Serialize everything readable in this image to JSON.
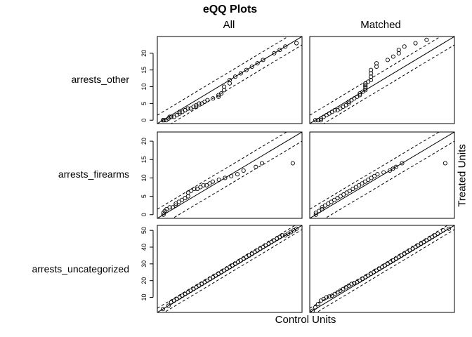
{
  "chart_data": {
    "type": "scatter",
    "title": "eQQ Plots",
    "column_labels": [
      "All",
      "Matched"
    ],
    "xlabel": "Control Units",
    "ylabel": "Treated Units",
    "panels": [
      {
        "row": "arrests_other",
        "yticks": [
          0,
          5,
          10,
          15,
          20
        ],
        "ylim": [
          -1,
          25
        ],
        "band_offset": 2.5,
        "columns": [
          {
            "name": "All",
            "x": [
              0,
              0.2,
              0.6,
              1,
              1.2,
              1.5,
              2,
              2.5,
              3,
              3,
              3.5,
              4,
              4,
              4.5,
              5,
              5.5,
              6,
              6,
              6.5,
              7,
              7.5,
              8,
              9,
              10,
              10,
              10.5,
              11,
              11,
              12,
              12,
              13,
              14,
              15,
              16,
              17,
              18,
              20,
              21,
              22,
              24
            ],
            "y": [
              0,
              0,
              0,
              0.5,
              1,
              1,
              1,
              1.5,
              2,
              2.5,
              2.5,
              3,
              3,
              3.5,
              3.5,
              4,
              4,
              4.5,
              5,
              5,
              5.5,
              6,
              6.5,
              7,
              7.5,
              8,
              9,
              10,
              11,
              12,
              13,
              14,
              15,
              16,
              17,
              18,
              20,
              21,
              22,
              23
            ]
          },
          {
            "name": "Matched",
            "x": [
              0,
              0.5,
              1,
              1,
              1.5,
              2,
              2.5,
              3,
              3.5,
              4,
              4.5,
              5,
              5.5,
              6,
              6,
              6.5,
              7,
              7.5,
              8,
              8,
              8.5,
              9,
              9,
              9,
              9,
              9,
              9.5,
              10,
              10,
              10,
              10,
              11,
              11,
              13,
              14,
              15,
              15,
              16,
              18,
              20
            ],
            "y": [
              0,
              0,
              0,
              0.5,
              1,
              1.5,
              2,
              2.5,
              3,
              3,
              3.5,
              4,
              4.5,
              5,
              5.5,
              6,
              6.5,
              7,
              7.5,
              8,
              8.5,
              9,
              9.5,
              10,
              10.5,
              11,
              11.5,
              12,
              13,
              14,
              15,
              16,
              17,
              18,
              19,
              20,
              21,
              22,
              23,
              24
            ]
          }
        ]
      },
      {
        "row": "arrests_firearms",
        "yticks": [
          0,
          5,
          10,
          15,
          20
        ],
        "ylim": [
          -1,
          22.5
        ],
        "band_offset": 2.5,
        "columns": [
          {
            "name": "All",
            "x": [
              0,
              0,
              0.2,
              0.5,
              1,
              1.5,
              2,
              2,
              2.5,
              3,
              3.5,
              4,
              4,
              4.5,
              5,
              5.5,
              6,
              6.5,
              7,
              7.5,
              8,
              9,
              10,
              11,
              12,
              13,
              15,
              16,
              21
            ],
            "y": [
              0,
              0.5,
              1,
              1.5,
              2,
              2,
              2.5,
              3,
              3.5,
              4,
              4.5,
              5,
              6,
              6.5,
              7,
              7,
              7.5,
              8,
              8,
              8.5,
              9,
              9.5,
              10,
              10.5,
              11,
              12,
              13,
              14,
              14
            ]
          },
          {
            "name": "Matched",
            "x": [
              0,
              0,
              0.5,
              1,
              1,
              1.5,
              2,
              2.5,
              3,
              3.5,
              4,
              4.5,
              5,
              5.5,
              6,
              6.5,
              7,
              7.5,
              8,
              8.5,
              9,
              9.5,
              10,
              11,
              12,
              12.5,
              13,
              14,
              21
            ],
            "y": [
              0,
              0.5,
              1,
              1.5,
              2,
              2.5,
              3,
              3.5,
              4,
              4.5,
              5,
              5.5,
              6,
              6.5,
              7,
              7.5,
              8,
              8.5,
              9,
              9.5,
              10,
              10.5,
              11,
              11.5,
              12,
              12.5,
              13,
              14,
              14
            ]
          }
        ]
      },
      {
        "row": "arrests_uncategorized",
        "yticks": [
          10,
          20,
          30,
          40,
          50
        ],
        "ylim": [
          1,
          53
        ],
        "band_offset": 2.5,
        "columns": [
          {
            "name": "All",
            "x": [
              3,
              5,
              6,
              7,
              8,
              9,
              10,
              11,
              12,
              13,
              14,
              15,
              16,
              17,
              18,
              19,
              20,
              21,
              22,
              23,
              24,
              25,
              26,
              27,
              28,
              29,
              30,
              31,
              32,
              33,
              34,
              35,
              36,
              37,
              38,
              39,
              40,
              41,
              42,
              43,
              44,
              45,
              46,
              47,
              48,
              49,
              50,
              51
            ],
            "y": [
              3,
              5,
              7,
              8,
              9,
              10,
              11,
              12,
              13,
              14,
              15,
              16,
              17,
              18,
              19,
              20,
              21,
              22,
              23,
              24,
              25,
              26,
              27,
              28,
              29,
              30,
              31,
              32,
              33,
              34,
              35,
              36,
              37,
              38,
              39,
              40,
              41,
              42,
              43,
              44,
              45,
              46,
              47,
              47,
              48,
              49,
              50,
              51
            ]
          },
          {
            "name": "Matched",
            "x": [
              2,
              3,
              4,
              5,
              6,
              7,
              8,
              9,
              10,
              11,
              12,
              13,
              14,
              15,
              16,
              17,
              18,
              19,
              20,
              21,
              22,
              23,
              24,
              25,
              26,
              27,
              28,
              29,
              30,
              31,
              32,
              33,
              34,
              35,
              36,
              37,
              38,
              39,
              40,
              41,
              42,
              43,
              44,
              45,
              46,
              47,
              49,
              51
            ],
            "y": [
              2,
              4,
              6,
              8,
              9,
              10,
              10.5,
              11,
              12,
              13,
              14,
              15,
              16,
              17,
              18,
              18.5,
              19,
              20,
              21,
              22,
              23,
              24,
              25,
              26,
              27,
              28,
              29,
              30,
              31,
              32,
              33,
              34,
              35,
              36,
              37,
              38,
              39,
              40,
              41,
              42,
              43,
              44,
              45,
              46,
              47,
              48,
              50,
              51
            ]
          }
        ]
      }
    ]
  }
}
